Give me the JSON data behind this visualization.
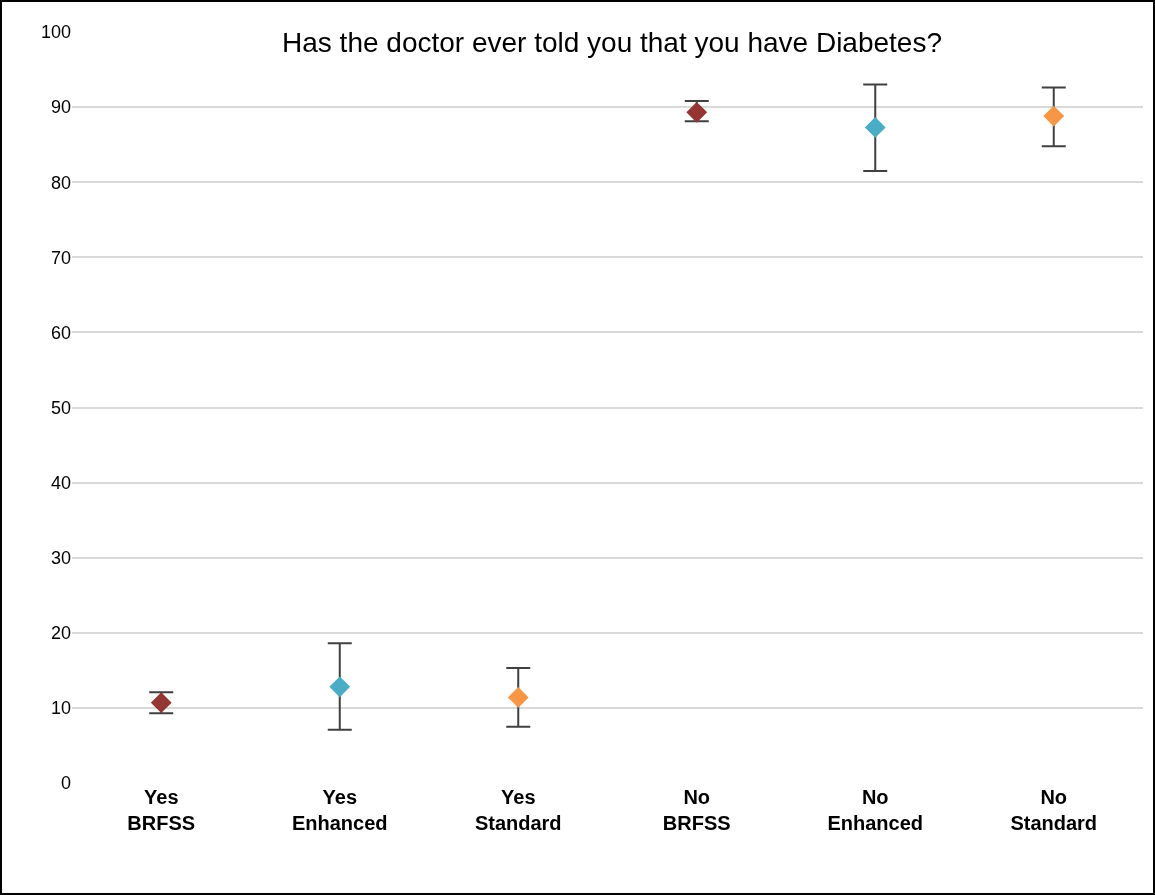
{
  "chart_data": {
    "type": "scatter",
    "title": "Has the doctor ever told you that you have Diabetes?",
    "categories": [
      "Yes\nBRFSS",
      "Yes\nEnhanced",
      "Yes\nStandard",
      "No\nBRFSS",
      "No\nEnhanced",
      "No\nStandard"
    ],
    "values": [
      10.7,
      12.8,
      11.4,
      89.3,
      87.3,
      88.8
    ],
    "errors": [
      [
        9.3,
        12.1
      ],
      [
        7.1,
        18.6
      ],
      [
        7.5,
        15.3
      ],
      [
        88.1,
        90.8
      ],
      [
        81.5,
        93.0
      ],
      [
        84.8,
        92.6
      ]
    ],
    "colors": [
      "#943634",
      "#4bacc6",
      "#f79646",
      "#943634",
      "#4bacc6",
      "#f79646"
    ],
    "marker": "diamond",
    "ylim": [
      0,
      100
    ],
    "yticks": [
      0,
      10,
      20,
      30,
      40,
      50,
      60,
      70,
      80,
      90,
      100
    ],
    "grid": "y"
  }
}
